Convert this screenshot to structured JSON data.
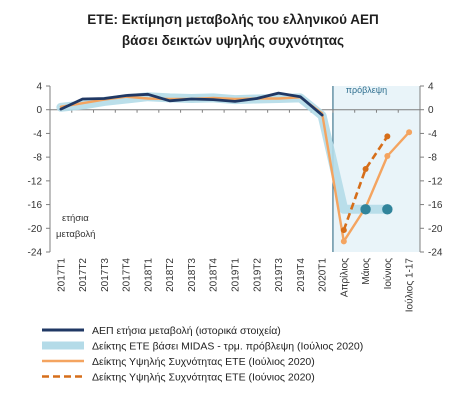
{
  "chart_data": {
    "type": "line",
    "title": [
      "ΕΤΕ: Εκτίμηση μεταβολής του ελληνικού ΑΕΠ",
      "βάσει δεικτών υψηλής συχνότητας"
    ],
    "categories": [
      "2017Τ1",
      "2017Τ2",
      "2017Τ3",
      "2017Τ4",
      "2018Τ1",
      "2018Τ2",
      "2018Τ3",
      "2018Τ4",
      "2019Τ1",
      "2019Τ2",
      "2019Τ3",
      "2019Τ4",
      "2020Τ1",
      "Απρίλιος",
      "Μάιος",
      "Ιούνιος",
      "Ιούλιος 1-17"
    ],
    "ylim": [
      -24,
      4
    ],
    "yticks": [
      4,
      0,
      -4,
      -8,
      -12,
      -16,
      -20,
      -24
    ],
    "ytick_labels": [
      "4",
      "0",
      "-4",
      "-8",
      "-12",
      "-16",
      "-20",
      "-24"
    ],
    "yaxis_label": [
      "ετήσια",
      "μεταβολή"
    ],
    "forecast_label": "πρόβλεψη",
    "grid": false,
    "legend_position": "bottom",
    "series": [
      {
        "name": "ΑΕΠ ετήσια μεταβολή (ιστορικά στοιχεία)",
        "color": "#203864",
        "style": "solid",
        "values": [
          0.1,
          1.8,
          1.9,
          2.4,
          2.6,
          1.5,
          1.8,
          1.7,
          1.4,
          1.9,
          2.8,
          2.2,
          -0.9,
          null,
          null,
          null,
          null
        ]
      },
      {
        "name": "Δείκτης ΕΤΕ βάσει MIDAS - τρμ. πρόβλεψη (Ιούλιος 2020)",
        "color": "#b4dbe8",
        "style": "band",
        "values": [
          0.4,
          0.8,
          1.4,
          1.8,
          2.2,
          2.0,
          1.9,
          2.0,
          1.7,
          1.8,
          1.9,
          2.0,
          -1.0,
          -16.8,
          -16.8,
          -16.8,
          null
        ]
      },
      {
        "name": "Δείκτης Υψηλής Συχνότητας ΕΤΕ (Ιούλιος 2020)",
        "color": "#f4a460",
        "style": "solid",
        "values": [
          0.5,
          1.1,
          1.7,
          2.2,
          1.9,
          1.8,
          1.8,
          2.0,
          1.8,
          1.9,
          1.9,
          2.1,
          -0.6,
          -22.2,
          -16.5,
          -7.8,
          -3.8
        ]
      },
      {
        "name": "Δείκτης Υψηλής Συχνότητας ΕΤΕ (Ιούνιος 2020)",
        "color": "#d66e1a",
        "style": "dashed",
        "values": [
          null,
          null,
          null,
          null,
          null,
          null,
          null,
          null,
          null,
          null,
          null,
          null,
          null,
          -20.3,
          -10.0,
          -4.5,
          null
        ]
      }
    ],
    "markers": [
      {
        "category": "Μάιος",
        "value": -16.8,
        "color": "#31849b"
      },
      {
        "category": "Ιούνιος",
        "value": -16.8,
        "color": "#31849b"
      }
    ]
  }
}
